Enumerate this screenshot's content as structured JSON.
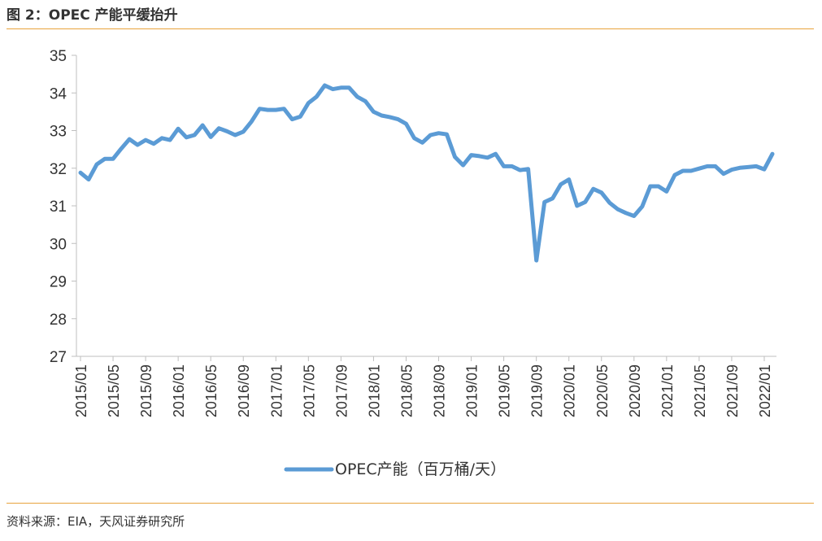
{
  "figure": {
    "title": "图 2：OPEC 产能平缓抬升",
    "source": "资料来源：EIA，天风证券研究所"
  },
  "colors": {
    "series": "#5b9bd5",
    "rule": "#e8a33d",
    "axis": "#bfbfbf",
    "text": "#333333"
  },
  "chart_data": {
    "type": "line",
    "title": "",
    "xlabel": "",
    "ylabel": "",
    "ylim": [
      27,
      35
    ],
    "yticks": [
      27,
      28,
      29,
      30,
      31,
      32,
      33,
      34,
      35
    ],
    "grid": false,
    "legend_position": "bottom-center",
    "x_tick_labels": [
      "2015/01",
      "2015/05",
      "2015/09",
      "2016/01",
      "2016/05",
      "2016/09",
      "2017/01",
      "2017/05",
      "2017/09",
      "2018/01",
      "2018/05",
      "2018/09",
      "2019/01",
      "2019/05",
      "2019/09",
      "2020/01",
      "2020/05",
      "2020/09",
      "2021/01",
      "2021/05",
      "2021/09",
      "2022/01"
    ],
    "x": [
      "2015/01",
      "2015/02",
      "2015/03",
      "2015/04",
      "2015/05",
      "2015/06",
      "2015/07",
      "2015/08",
      "2015/09",
      "2015/10",
      "2015/11",
      "2015/12",
      "2016/01",
      "2016/02",
      "2016/03",
      "2016/04",
      "2016/05",
      "2016/06",
      "2016/07",
      "2016/08",
      "2016/09",
      "2016/10",
      "2016/11",
      "2016/12",
      "2017/01",
      "2017/02",
      "2017/03",
      "2017/04",
      "2017/05",
      "2017/06",
      "2017/07",
      "2017/08",
      "2017/09",
      "2017/10",
      "2017/11",
      "2017/12",
      "2018/01",
      "2018/02",
      "2018/03",
      "2018/04",
      "2018/05",
      "2018/06",
      "2018/07",
      "2018/08",
      "2018/09",
      "2018/10",
      "2018/11",
      "2018/12",
      "2019/01",
      "2019/02",
      "2019/03",
      "2019/04",
      "2019/05",
      "2019/06",
      "2019/07",
      "2019/08",
      "2019/09",
      "2019/10",
      "2019/11",
      "2019/12",
      "2020/01",
      "2020/02",
      "2020/03",
      "2020/04",
      "2020/05",
      "2020/06",
      "2020/07",
      "2020/08",
      "2020/09",
      "2020/10",
      "2020/11",
      "2020/12",
      "2021/01",
      "2021/02",
      "2021/03",
      "2021/04",
      "2021/05",
      "2021/06",
      "2021/07",
      "2021/08",
      "2021/09",
      "2021/10",
      "2021/11",
      "2021/12",
      "2022/01",
      "2022/02"
    ],
    "series": [
      {
        "name": "OPEC产能（百万桶/天）",
        "color": "#5b9bd5",
        "values": [
          31.88,
          31.7,
          32.1,
          32.25,
          32.25,
          32.52,
          32.77,
          32.62,
          32.75,
          32.65,
          32.8,
          32.75,
          33.05,
          32.82,
          32.88,
          33.14,
          32.83,
          33.06,
          32.98,
          32.88,
          32.97,
          33.24,
          33.58,
          33.55,
          33.55,
          33.58,
          33.3,
          33.37,
          33.73,
          33.9,
          34.2,
          34.1,
          34.14,
          34.14,
          33.9,
          33.78,
          33.5,
          33.4,
          33.36,
          33.3,
          33.18,
          32.8,
          32.68,
          32.88,
          32.93,
          32.9,
          32.3,
          32.08,
          32.35,
          32.32,
          32.28,
          32.38,
          32.05,
          32.05,
          31.95,
          31.98,
          29.55,
          31.1,
          31.2,
          31.57,
          31.7,
          31.0,
          31.1,
          31.45,
          31.35,
          31.08,
          30.91,
          30.81,
          30.73,
          30.98,
          31.52,
          31.52,
          31.38,
          31.82,
          31.93,
          31.93,
          31.99,
          32.05,
          32.05,
          31.85,
          31.96,
          32.01,
          32.03,
          32.05,
          31.97,
          32.38
        ]
      }
    ]
  }
}
